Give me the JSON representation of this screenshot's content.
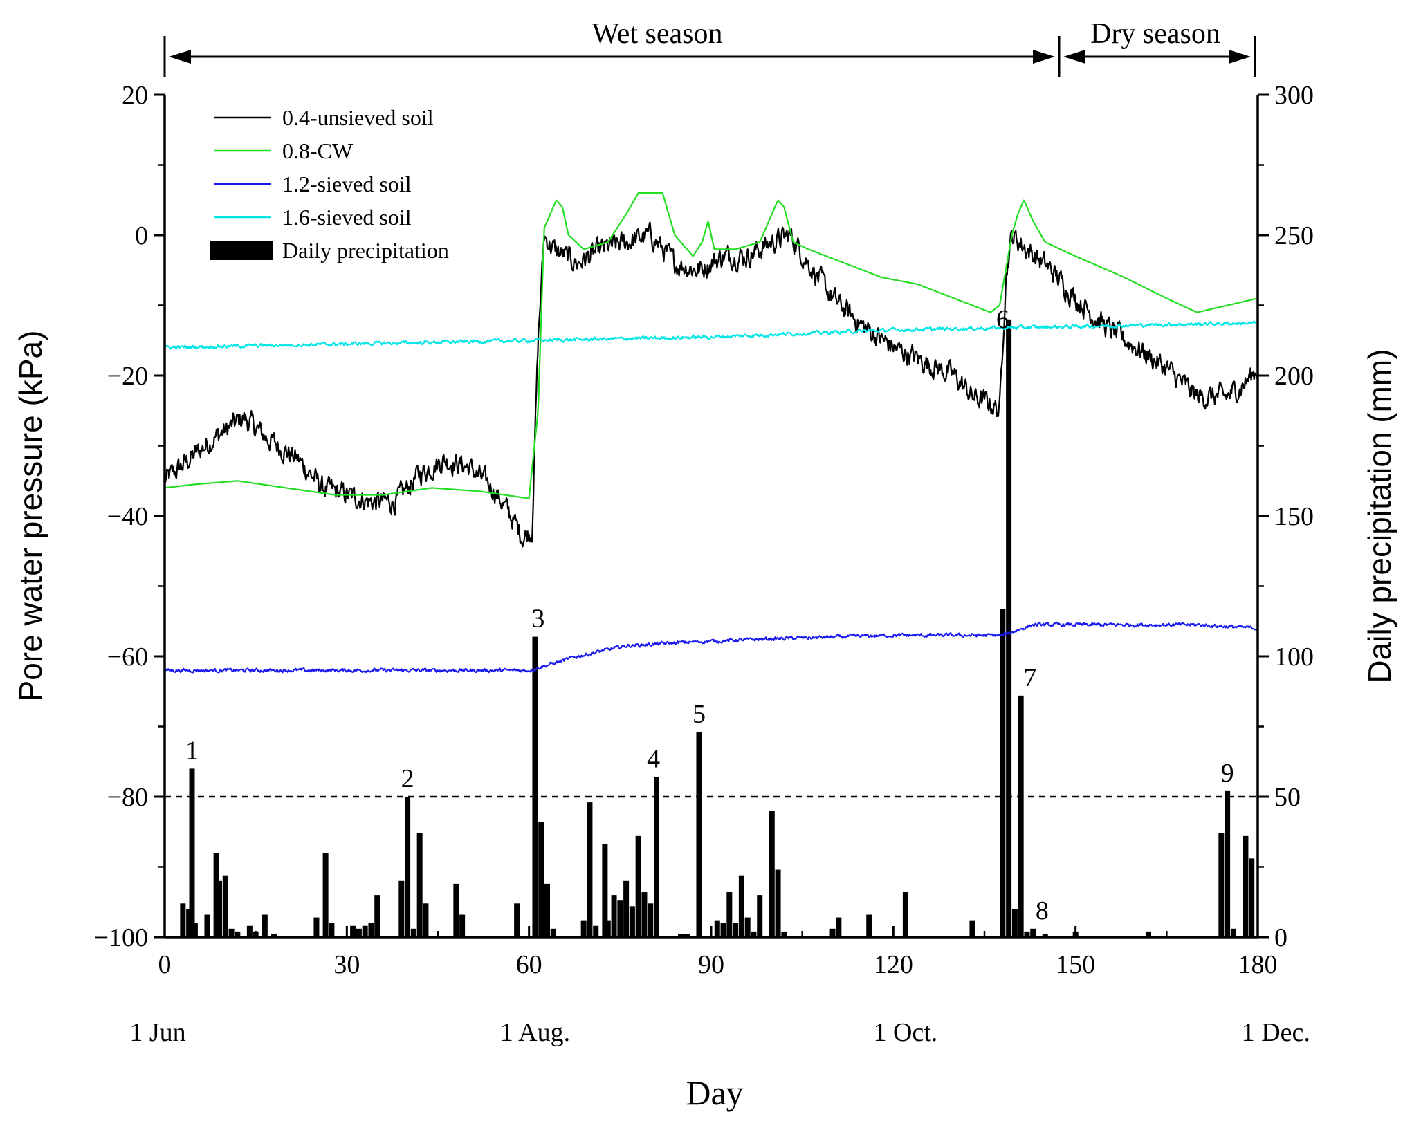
{
  "chart_data": {
    "type": "line",
    "title": "",
    "xlabel": "Day",
    "ylabel_left": "Pore water pressure (kPa)",
    "ylabel_right": "Daily precipitation (mm)",
    "xlim": [
      0,
      180
    ],
    "ylim_left": [
      -100,
      20
    ],
    "ylim_right": [
      0,
      300
    ],
    "x_ticks": [
      0,
      30,
      60,
      90,
      120,
      150,
      180
    ],
    "y_left_ticks": [
      -100,
      -80,
      -60,
      -40,
      -20,
      0,
      20
    ],
    "y_right_ticks": [
      0,
      50,
      100,
      150,
      200,
      250,
      300
    ],
    "date_labels": [
      {
        "day": 0,
        "label": "1 Jun"
      },
      {
        "day": 61,
        "label": "1 Aug."
      },
      {
        "day": 122,
        "label": "1 Oct."
      },
      {
        "day": 183,
        "label": "1 Dec."
      }
    ],
    "seasons": [
      {
        "name": "Wet season",
        "start": 0,
        "end": 147
      },
      {
        "name": "Dry season",
        "start": 147,
        "end": 180
      }
    ],
    "threshold": {
      "value_mm": 50,
      "style": "dashed"
    },
    "legend": [
      {
        "label": "0.4-unsieved soil",
        "color": "#000000",
        "kind": "line"
      },
      {
        "label": "0.8-CW",
        "color": "#22dd22",
        "kind": "line"
      },
      {
        "label": "1.2-sieved soil",
        "color": "#1a1aee",
        "kind": "line"
      },
      {
        "label": "1.6-sieved soil",
        "color": "#00e5e5",
        "kind": "line"
      },
      {
        "label": "Daily precipitation",
        "color": "#000000",
        "kind": "bar"
      }
    ],
    "series": [
      {
        "name": "0.4-unsieved soil",
        "color": "#000000",
        "noise": 1.6,
        "points": [
          [
            0,
            -35
          ],
          [
            4,
            -32
          ],
          [
            8,
            -29
          ],
          [
            13,
            -26
          ],
          [
            17,
            -29
          ],
          [
            22,
            -32
          ],
          [
            26,
            -36
          ],
          [
            30,
            -37
          ],
          [
            34,
            -38
          ],
          [
            38,
            -38
          ],
          [
            42,
            -34
          ],
          [
            46,
            -32
          ],
          [
            50,
            -33
          ],
          [
            54,
            -36
          ],
          [
            57,
            -40
          ],
          [
            59,
            -43
          ],
          [
            60.5,
            -42
          ],
          [
            61.5,
            -15
          ],
          [
            62.5,
            0
          ],
          [
            64,
            -2
          ],
          [
            68,
            -4
          ],
          [
            72,
            -2
          ],
          [
            76,
            -1
          ],
          [
            80,
            0
          ],
          [
            84,
            -4
          ],
          [
            88,
            -5
          ],
          [
            92,
            -3
          ],
          [
            96,
            -3
          ],
          [
            100,
            -1
          ],
          [
            103,
            0
          ],
          [
            106,
            -4
          ],
          [
            110,
            -9
          ],
          [
            115,
            -13
          ],
          [
            120,
            -16
          ],
          [
            125,
            -18
          ],
          [
            130,
            -20
          ],
          [
            133,
            -23
          ],
          [
            136,
            -24
          ],
          [
            137.5,
            -25
          ],
          [
            138.5,
            -6
          ],
          [
            139.5,
            0
          ],
          [
            142,
            -2
          ],
          [
            146,
            -5
          ],
          [
            150,
            -9
          ],
          [
            155,
            -13
          ],
          [
            160,
            -16
          ],
          [
            165,
            -19
          ],
          [
            170,
            -23
          ],
          [
            175,
            -23
          ],
          [
            178,
            -21
          ],
          [
            180,
            -19
          ]
        ]
      },
      {
        "name": "0.8-CW",
        "color": "#22dd22",
        "noise": 0,
        "points": [
          [
            0,
            -36
          ],
          [
            5,
            -35.5
          ],
          [
            12,
            -35
          ],
          [
            20,
            -36
          ],
          [
            28,
            -37
          ],
          [
            36,
            -37
          ],
          [
            44,
            -36
          ],
          [
            52,
            -36.5
          ],
          [
            56,
            -37
          ],
          [
            60,
            -37.5
          ],
          [
            61.5,
            -25
          ],
          [
            62.5,
            1
          ],
          [
            63.5,
            3
          ],
          [
            64.5,
            5
          ],
          [
            65.5,
            4
          ],
          [
            66.5,
            0
          ],
          [
            69,
            -2
          ],
          [
            73,
            -1
          ],
          [
            76,
            3
          ],
          [
            78,
            6
          ],
          [
            80,
            6
          ],
          [
            82,
            6
          ],
          [
            84,
            0
          ],
          [
            87,
            -3
          ],
          [
            88.5,
            -1
          ],
          [
            89.5,
            2
          ],
          [
            90.5,
            -2
          ],
          [
            94,
            -2
          ],
          [
            98,
            -1
          ],
          [
            100,
            3
          ],
          [
            101,
            5
          ],
          [
            102,
            4
          ],
          [
            103.5,
            -1
          ],
          [
            106,
            -2
          ],
          [
            112,
            -4
          ],
          [
            118,
            -6
          ],
          [
            124,
            -7
          ],
          [
            130,
            -9
          ],
          [
            136,
            -11
          ],
          [
            137.5,
            -10
          ],
          [
            139.5,
            0
          ],
          [
            140.5,
            3
          ],
          [
            141.5,
            5
          ],
          [
            143,
            2
          ],
          [
            145,
            -1
          ],
          [
            150,
            -3
          ],
          [
            158,
            -6
          ],
          [
            165,
            -9
          ],
          [
            170,
            -11
          ],
          [
            175,
            -10
          ],
          [
            180,
            -9
          ]
        ]
      },
      {
        "name": "1.2-sieved soil",
        "color": "#1a1aee",
        "noise": 0.25,
        "points": [
          [
            0,
            -62
          ],
          [
            20,
            -62
          ],
          [
            40,
            -62
          ],
          [
            60,
            -62
          ],
          [
            68,
            -60
          ],
          [
            76,
            -58.5
          ],
          [
            86,
            -58
          ],
          [
            100,
            -57.5
          ],
          [
            120,
            -57
          ],
          [
            138,
            -57
          ],
          [
            143,
            -55.5
          ],
          [
            155,
            -55.5
          ],
          [
            170,
            -55.5
          ],
          [
            180,
            -56
          ]
        ]
      },
      {
        "name": "1.6-sieved soil",
        "color": "#00e5e5",
        "noise": 0.25,
        "points": [
          [
            0,
            -16
          ],
          [
            30,
            -15.5
          ],
          [
            60,
            -15
          ],
          [
            90,
            -14.5
          ],
          [
            120,
            -13.5
          ],
          [
            150,
            -13
          ],
          [
            180,
            -12.5
          ]
        ]
      }
    ],
    "precipitation": {
      "days": [
        3,
        4,
        4.5,
        5,
        7,
        8.5,
        9,
        10,
        11,
        12,
        14,
        15,
        16.5,
        18,
        25,
        26.5,
        27.5,
        31,
        32,
        33,
        34,
        35,
        39,
        40,
        41,
        42,
        43,
        48,
        49,
        58,
        61,
        62,
        63,
        64,
        69,
        70,
        71,
        72.5,
        73,
        74,
        75,
        76,
        77,
        78,
        79,
        80,
        81,
        85,
        86,
        88,
        91,
        92,
        93,
        94,
        95,
        96,
        97,
        98,
        100,
        101,
        102,
        110,
        111,
        116,
        122,
        133,
        138,
        139,
        140,
        141,
        142,
        143,
        145,
        150,
        162,
        174,
        175,
        176,
        178,
        179
      ],
      "values": [
        12,
        10,
        60,
        5,
        8,
        30,
        20,
        22,
        3,
        2,
        4,
        2,
        8,
        1,
        7,
        30,
        5,
        4,
        3,
        4,
        5,
        15,
        20,
        50,
        3,
        37,
        12,
        19,
        8,
        12,
        107,
        41,
        19,
        3,
        6,
        48,
        4,
        33,
        6,
        15,
        13,
        20,
        11,
        36,
        16,
        12,
        57,
        1,
        1,
        73,
        6,
        5,
        16,
        5,
        22,
        7,
        2,
        15,
        45,
        24,
        2,
        3,
        7,
        8,
        16,
        6,
        117,
        220,
        10,
        86,
        2,
        3,
        1,
        2,
        2,
        37,
        52,
        3,
        36,
        28
      ]
    },
    "annotations": [
      {
        "label": "1",
        "day": 4.5
      },
      {
        "label": "2",
        "day": 40
      },
      {
        "label": "3",
        "day": 61.5
      },
      {
        "label": "4",
        "day": 80.5
      },
      {
        "label": "5",
        "day": 88
      },
      {
        "label": "6",
        "day": 138
      },
      {
        "label": "7",
        "day": 142.5
      },
      {
        "label": "8",
        "day": 144.5
      },
      {
        "label": "9",
        "day": 175
      }
    ]
  }
}
